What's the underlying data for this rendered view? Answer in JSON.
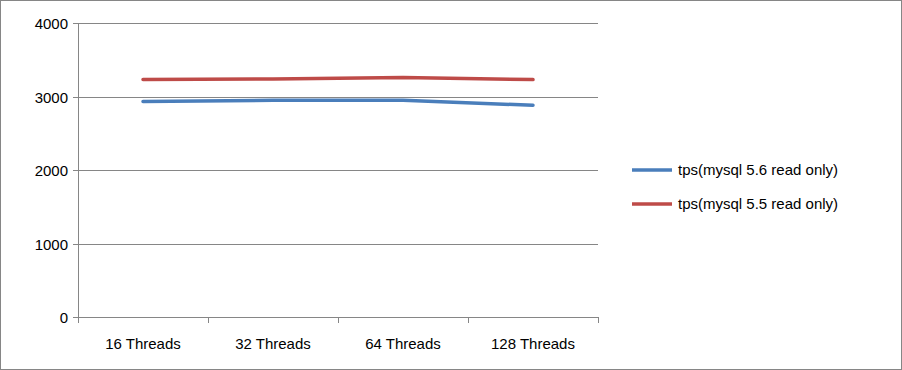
{
  "chart_data": {
    "type": "line",
    "categories": [
      "16 Threads",
      "32 Threads",
      "64 Threads",
      "128 Threads"
    ],
    "series": [
      {
        "name": "tps(mysql 5.6 read only)",
        "color": "#4a7ebb",
        "values": [
          2930,
          2950,
          2950,
          2880
        ]
      },
      {
        "name": "tps(mysql 5.5 read only)",
        "color": "#be4b48",
        "values": [
          3230,
          3240,
          3260,
          3230
        ]
      }
    ],
    "ylim": [
      0,
      4000
    ],
    "yticks": [
      0,
      1000,
      2000,
      3000,
      4000
    ],
    "grid": true,
    "legend": "right"
  }
}
